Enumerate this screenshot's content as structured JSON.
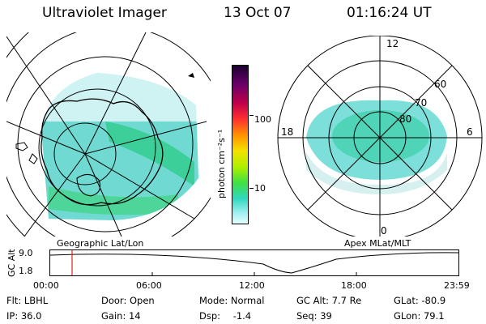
{
  "header": {
    "instrument": "Ultraviolet Imager",
    "date": "13 Oct 07",
    "time": "01:16:24 UT"
  },
  "colorbar": {
    "label": "photon cm⁻²s⁻¹",
    "ticks": [
      "100",
      "10"
    ],
    "scale": "log",
    "colors": [
      "#1a0030",
      "#6a006a",
      "#c0004a",
      "#ff3030",
      "#ff9000",
      "#f5e000",
      "#b0f000",
      "#40e040",
      "#30d8c0",
      "#a0f0f0",
      "#e8ffff"
    ]
  },
  "left_panel": {
    "caption": "Geographic Lat/Lon"
  },
  "right_panel": {
    "caption": "Apex MLat/MLT",
    "mlt_labels": {
      "top": "12",
      "bottom": "0",
      "left": "18",
      "right": "6"
    },
    "lat_labels": [
      "60",
      "70",
      "80"
    ]
  },
  "altitude_plot": {
    "ylabel": "GC Alt",
    "yticks": [
      "9.0",
      "1.8"
    ],
    "xticks": [
      "00:00",
      "06:00",
      "12:00",
      "18:00",
      "23:59"
    ],
    "marker_time": "01:16",
    "marker_color": "#e02020"
  },
  "status": {
    "row1": [
      {
        "key": "Flt:",
        "val": "LBHL"
      },
      {
        "key": "Door:",
        "val": "Open"
      },
      {
        "key": "Mode:",
        "val": "Normal"
      },
      {
        "key": "GC Alt:",
        "val": "7.7 Re"
      },
      {
        "key": "GLat:",
        "val": "-80.9"
      }
    ],
    "row2": [
      {
        "key": "IP:",
        "val": "36.0"
      },
      {
        "key": "Gain:",
        "val": "14"
      },
      {
        "key": "Dsp:",
        "val": "-1.4"
      },
      {
        "key": "Seq:",
        "val": "39"
      },
      {
        "key": "GLon:",
        "val": "79.1"
      }
    ]
  }
}
